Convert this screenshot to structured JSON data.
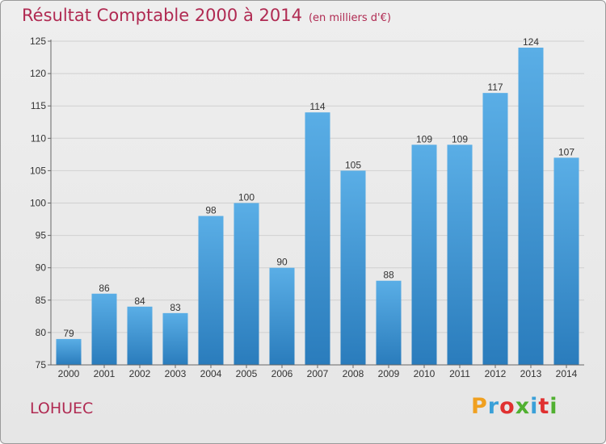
{
  "title": "Résultat Comptable 2000 à 2014",
  "subtitle": "(en milliers d'€)",
  "commune": "LOHUEC",
  "logo": "Proxiti",
  "colors": {
    "title": "#b02a52",
    "bar_top": "#5aaee6",
    "bar_bottom": "#2a7cbc",
    "axis": "#666666",
    "grid": "#d0d0d0",
    "logo": [
      "#f0a020",
      "#3aa0d8",
      "#e03030",
      "#50b030",
      "#3aa0d8",
      "#e03030",
      "#50b030"
    ]
  },
  "chart_data": {
    "type": "bar",
    "categories": [
      "2000",
      "2001",
      "2002",
      "2003",
      "2004",
      "2005",
      "2006",
      "2007",
      "2008",
      "2009",
      "2010",
      "2011",
      "2012",
      "2013",
      "2014"
    ],
    "values": [
      79,
      86,
      84,
      83,
      98,
      100,
      90,
      114,
      105,
      88,
      109,
      109,
      117,
      124,
      107
    ],
    "title": "Résultat Comptable 2000 à 2014",
    "subtitle": "(en milliers d'€)",
    "xlabel": "",
    "ylabel": "",
    "ylim": [
      75,
      125
    ],
    "yticks": [
      75,
      80,
      85,
      90,
      95,
      100,
      105,
      110,
      115,
      120,
      125
    ],
    "grid": true,
    "data_labels": true
  }
}
